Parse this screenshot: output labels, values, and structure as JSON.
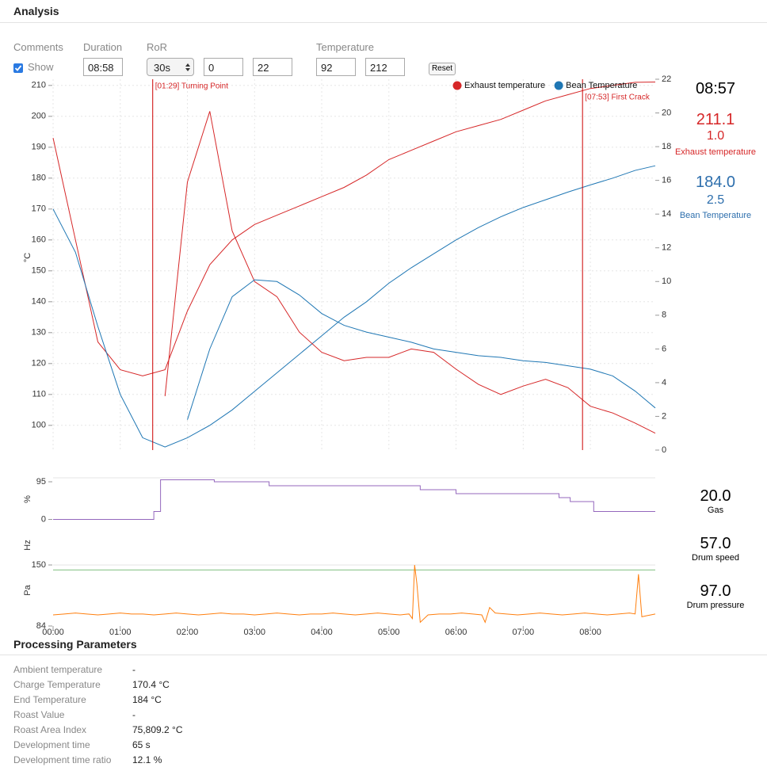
{
  "header": {
    "title": "Analysis"
  },
  "controls": {
    "comments": "Comments",
    "duration": "Duration",
    "ror": "RoR",
    "temperature": "Temperature",
    "show": "Show",
    "duration_value": "08:58",
    "ror_window": "30s",
    "ror_min": "0",
    "ror_max": "22",
    "temp_min": "92",
    "temp_max": "212",
    "reset": "Reset"
  },
  "readouts": {
    "time": "08:57",
    "exhaust": {
      "value": "211.1",
      "ror": "1.0",
      "label": "Exhaust temperature"
    },
    "bean": {
      "value": "184.0",
      "ror": "2.5",
      "label": "Bean Temperature"
    },
    "gas": {
      "value": "20.0",
      "label": "Gas"
    },
    "speed": {
      "value": "57.0",
      "label": "Drum speed"
    },
    "pressure": {
      "value": "97.0",
      "label": "Drum pressure"
    }
  },
  "chart_data": [
    {
      "type": "line",
      "y_label": "°C",
      "xlim": [
        0,
        538
      ],
      "ylim": [
        92,
        212
      ],
      "yticks": [
        100,
        110,
        120,
        130,
        140,
        150,
        160,
        170,
        180,
        190,
        200,
        210
      ],
      "y2lim": [
        0,
        22
      ],
      "y2ticks": [
        0,
        2,
        4,
        6,
        8,
        10,
        12,
        14,
        16,
        18,
        20,
        22
      ],
      "grid": true,
      "legend": "top-right",
      "xticks": [
        {
          "value": 0,
          "label": "00:00"
        },
        {
          "value": 60,
          "label": "01:00"
        },
        {
          "value": 120,
          "label": "02:00"
        },
        {
          "value": 180,
          "label": "03:00"
        },
        {
          "value": 240,
          "label": "04:00"
        },
        {
          "value": 300,
          "label": "05:00"
        },
        {
          "value": 360,
          "label": "06:00"
        },
        {
          "value": 420,
          "label": "07:00"
        },
        {
          "value": 480,
          "label": "08:00"
        }
      ],
      "x": [
        0,
        20,
        40,
        60,
        80,
        100,
        120,
        140,
        160,
        180,
        200,
        220,
        240,
        260,
        280,
        300,
        320,
        340,
        360,
        380,
        400,
        420,
        440,
        460,
        480,
        500,
        520,
        538
      ],
      "series": [
        {
          "name": "Exhaust temperature",
          "color": "#d62728",
          "values": [
            193,
            160,
            127,
            118,
            116,
            118,
            137,
            152,
            160,
            165,
            168,
            171,
            174,
            177,
            181,
            186,
            189,
            192,
            195,
            197,
            199,
            202,
            205,
            207,
            209,
            210,
            211,
            211.1
          ]
        },
        {
          "name": "Bean Temperature",
          "color": "#1f77b4",
          "values": [
            170,
            156,
            132,
            110,
            96,
            93,
            96,
            100,
            105,
            111,
            117,
            123,
            129,
            135,
            140,
            146,
            151,
            155.5,
            160,
            164,
            167.5,
            170.5,
            173,
            175.5,
            177.8,
            180,
            182.5,
            184
          ]
        },
        {
          "axis": "y2",
          "color": "#d62728",
          "values": [
            null,
            null,
            null,
            null,
            null,
            3.2,
            15.9,
            20.1,
            13,
            10,
            9.1,
            7,
            5.8,
            5.3,
            5.5,
            5.5,
            6,
            5.8,
            4.8,
            3.9,
            3.3,
            3.8,
            4.2,
            3.7,
            2.6,
            2.2,
            1.6,
            1.0
          ]
        },
        {
          "axis": "y2",
          "color": "#1f77b4",
          "values": [
            null,
            null,
            null,
            null,
            null,
            null,
            1.8,
            6,
            9.1,
            10.1,
            10,
            9.2,
            8.1,
            7.4,
            7,
            6.7,
            6.4,
            6,
            5.8,
            5.6,
            5.5,
            5.3,
            5.2,
            5,
            4.8,
            4.4,
            3.5,
            2.5
          ]
        }
      ],
      "events": [
        {
          "x": 89,
          "label": "[01:29] Turning Point"
        },
        {
          "x": 473,
          "label": "[07:53] First Crack"
        }
      ]
    },
    {
      "type": "step",
      "y_label": "%",
      "xlim": [
        0,
        538
      ],
      "ylim": [
        -15,
        105
      ],
      "yticks": [
        0,
        95
      ],
      "x": [
        0,
        90,
        96,
        144,
        193,
        328,
        360,
        452,
        462,
        483,
        538
      ],
      "series": [
        {
          "color": "#9467bd",
          "values": [
            0,
            20,
            100,
            95,
            85,
            75,
            65,
            55,
            45,
            20,
            20
          ]
        }
      ]
    },
    {
      "type": "line",
      "y_label": "Hz",
      "xlim": [
        0,
        538
      ],
      "ylim": [
        0,
        62
      ],
      "x": [
        0,
        538
      ],
      "series": [
        {
          "color": "#7fbf7f",
          "values": [
            57,
            57
          ]
        }
      ]
    },
    {
      "type": "line",
      "y_label": "Pa",
      "xlim": [
        0,
        538
      ],
      "ylim": [
        84,
        150
      ],
      "yticks": [
        84,
        150
      ],
      "x": [
        0,
        10,
        20,
        30,
        40,
        50,
        60,
        70,
        80,
        90,
        100,
        110,
        120,
        130,
        140,
        150,
        160,
        170,
        180,
        190,
        200,
        210,
        220,
        230,
        240,
        250,
        260,
        270,
        280,
        290,
        300,
        310,
        318,
        321,
        323,
        325,
        328,
        335,
        345,
        355,
        365,
        375,
        383,
        386,
        390,
        395,
        405,
        415,
        425,
        435,
        445,
        455,
        465,
        475,
        485,
        495,
        505,
        515,
        520,
        523,
        526,
        530,
        538
      ],
      "series": [
        {
          "color": "#ff7f0e",
          "values": [
            96,
            97,
            98,
            97,
            96,
            97,
            98,
            97,
            97,
            96,
            97,
            98,
            97,
            96,
            97,
            98,
            97,
            97,
            96,
            97,
            98,
            97,
            96,
            97,
            97,
            98,
            97,
            96,
            97,
            98,
            97,
            96,
            97,
            92,
            150,
            130,
            88,
            96,
            97,
            97,
            98,
            97,
            96,
            88,
            104,
            98,
            97,
            96,
            97,
            98,
            97,
            96,
            97,
            98,
            97,
            96,
            97,
            98,
            97,
            140,
            94,
            95,
            97
          ]
        }
      ]
    }
  ],
  "processing": {
    "title": "Processing Parameters",
    "rows": [
      [
        "Ambient temperature",
        "-"
      ],
      [
        "Charge Temperature",
        "170.4 °C"
      ],
      [
        "End Temperature",
        "184 °C"
      ],
      [
        "Roast Value",
        "-"
      ],
      [
        "Roast Area Index",
        "75,809.2 °C"
      ],
      [
        "Development time",
        "65 s"
      ],
      [
        "Development time ratio",
        "12.1 %"
      ]
    ]
  }
}
